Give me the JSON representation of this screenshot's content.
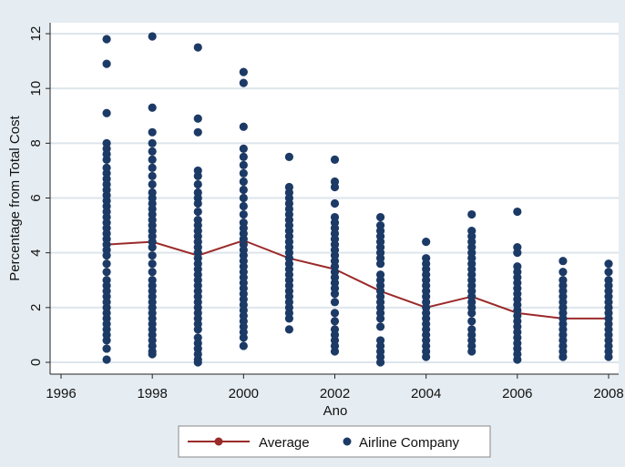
{
  "chart_data": {
    "type": "scatter",
    "title": "",
    "xlabel": "Ano",
    "ylabel": "Percentage from Total Cost",
    "xlim": [
      1996,
      2008
    ],
    "ylim": [
      0,
      12
    ],
    "x_ticks": [
      1996,
      1998,
      2000,
      2002,
      2004,
      2006,
      2008
    ],
    "y_ticks": [
      0,
      2,
      4,
      6,
      8,
      10,
      12
    ],
    "grid": "horizontal",
    "legend_position": "bottom",
    "colors": {
      "average_line": "#9b2a2a",
      "scatter_points": "#1c3a66",
      "plot_background": "#ffffff",
      "outer_background": "#e6edf2",
      "grid": "#dde5ec"
    },
    "legend": [
      {
        "label": "Average",
        "marker": "line-dot"
      },
      {
        "label": "Airline Company",
        "marker": "dot"
      }
    ],
    "series": [
      {
        "name": "Average",
        "type": "line",
        "x": [
          1997,
          1998,
          1999,
          2000,
          2001,
          2002,
          2003,
          2004,
          2005,
          2006,
          2007,
          2008
        ],
        "y": [
          4.3,
          4.4,
          3.9,
          4.45,
          3.8,
          3.4,
          2.6,
          2.0,
          2.4,
          1.8,
          1.6,
          1.6
        ]
      },
      {
        "name": "Airline Company",
        "type": "scatter",
        "points": [
          {
            "x": 1997,
            "y": [
              11.8,
              10.9,
              9.1,
              8.0,
              7.8,
              7.6,
              7.4,
              7.1,
              6.9,
              6.7,
              6.5,
              6.3,
              6.1,
              5.9,
              5.7,
              5.5,
              5.3,
              5.1,
              4.9,
              4.7,
              4.5,
              4.3,
              4.1,
              3.9,
              3.6,
              3.3,
              3.0,
              2.8,
              2.6,
              2.4,
              2.2,
              2.0,
              1.8,
              1.6,
              1.4,
              1.2,
              1.0,
              0.8,
              0.5,
              0.1
            ]
          },
          {
            "x": 1998,
            "y": [
              11.9,
              9.3,
              8.4,
              8.0,
              7.7,
              7.4,
              7.1,
              6.8,
              6.5,
              6.2,
              6.0,
              5.8,
              5.6,
              5.4,
              5.2,
              5.0,
              4.8,
              4.6,
              4.4,
              4.2,
              3.9,
              3.6,
              3.3,
              3.0,
              2.8,
              2.6,
              2.4,
              2.2,
              2.0,
              1.8,
              1.6,
              1.4,
              1.2,
              1.0,
              0.8,
              0.6,
              0.4,
              0.3
            ]
          },
          {
            "x": 1999,
            "y": [
              11.5,
              8.9,
              8.4,
              7.0,
              6.8,
              6.5,
              6.2,
              6.0,
              5.8,
              5.5,
              5.2,
              5.0,
              4.8,
              4.6,
              4.4,
              4.2,
              4.0,
              3.8,
              3.6,
              3.4,
              3.2,
              3.0,
              2.8,
              2.6,
              2.4,
              2.2,
              2.0,
              1.8,
              1.6,
              1.4,
              1.2,
              0.9,
              0.7,
              0.5,
              0.3,
              0.1,
              0.0
            ]
          },
          {
            "x": 2000,
            "y": [
              10.6,
              10.2,
              8.6,
              7.8,
              7.5,
              7.2,
              6.9,
              6.6,
              6.3,
              6.0,
              5.7,
              5.4,
              5.1,
              4.9,
              4.7,
              4.5,
              4.3,
              4.1,
              3.9,
              3.7,
              3.5,
              3.3,
              3.1,
              2.9,
              2.7,
              2.5,
              2.3,
              2.1,
              1.9,
              1.7,
              1.5,
              1.3,
              1.1,
              0.9,
              0.6
            ]
          },
          {
            "x": 2001,
            "y": [
              7.5,
              6.4,
              6.2,
              6.0,
              5.8,
              5.6,
              5.4,
              5.2,
              5.0,
              4.8,
              4.6,
              4.4,
              4.2,
              4.0,
              3.8,
              3.6,
              3.4,
              3.2,
              3.0,
              2.8,
              2.6,
              2.4,
              2.2,
              2.0,
              1.8,
              1.6,
              1.2
            ]
          },
          {
            "x": 2002,
            "y": [
              7.4,
              6.6,
              6.4,
              5.8,
              5.3,
              5.1,
              4.9,
              4.7,
              4.5,
              4.3,
              4.1,
              3.9,
              3.7,
              3.5,
              3.3,
              3.1,
              2.9,
              2.7,
              2.5,
              2.2,
              1.8,
              1.5,
              1.2,
              1.0,
              0.8,
              0.6,
              0.4
            ]
          },
          {
            "x": 2003,
            "y": [
              5.3,
              5.0,
              4.8,
              4.6,
              4.4,
              4.2,
              4.0,
              3.8,
              3.6,
              3.2,
              3.0,
              2.8,
              2.6,
              2.4,
              2.2,
              2.0,
              1.8,
              1.6,
              1.3,
              0.8,
              0.6,
              0.4,
              0.2,
              0.0
            ]
          },
          {
            "x": 2004,
            "y": [
              4.4,
              3.8,
              3.6,
              3.4,
              3.2,
              3.0,
              2.8,
              2.6,
              2.4,
              2.2,
              2.0,
              1.8,
              1.6,
              1.4,
              1.2,
              1.0,
              0.8,
              0.6,
              0.4,
              0.2
            ]
          },
          {
            "x": 2005,
            "y": [
              5.4,
              4.8,
              4.6,
              4.4,
              4.2,
              4.0,
              3.8,
              3.6,
              3.4,
              3.2,
              3.0,
              2.8,
              2.6,
              2.4,
              2.2,
              2.0,
              1.8,
              1.5,
              1.2,
              1.0,
              0.8,
              0.6,
              0.4
            ]
          },
          {
            "x": 2006,
            "y": [
              5.5,
              4.2,
              4.0,
              3.5,
              3.3,
              3.1,
              2.9,
              2.7,
              2.5,
              2.3,
              2.1,
              1.9,
              1.7,
              1.5,
              1.3,
              1.1,
              0.9,
              0.7,
              0.5,
              0.3,
              0.1
            ]
          },
          {
            "x": 2007,
            "y": [
              3.7,
              3.3,
              3.0,
              2.8,
              2.6,
              2.4,
              2.2,
              2.0,
              1.8,
              1.6,
              1.4,
              1.2,
              1.0,
              0.8,
              0.6,
              0.4,
              0.2
            ]
          },
          {
            "x": 2008,
            "y": [
              3.6,
              3.3,
              3.0,
              2.8,
              2.6,
              2.4,
              2.2,
              2.0,
              1.8,
              1.6,
              1.4,
              1.2,
              1.0,
              0.8,
              0.6,
              0.4,
              0.2
            ]
          }
        ]
      }
    ]
  }
}
